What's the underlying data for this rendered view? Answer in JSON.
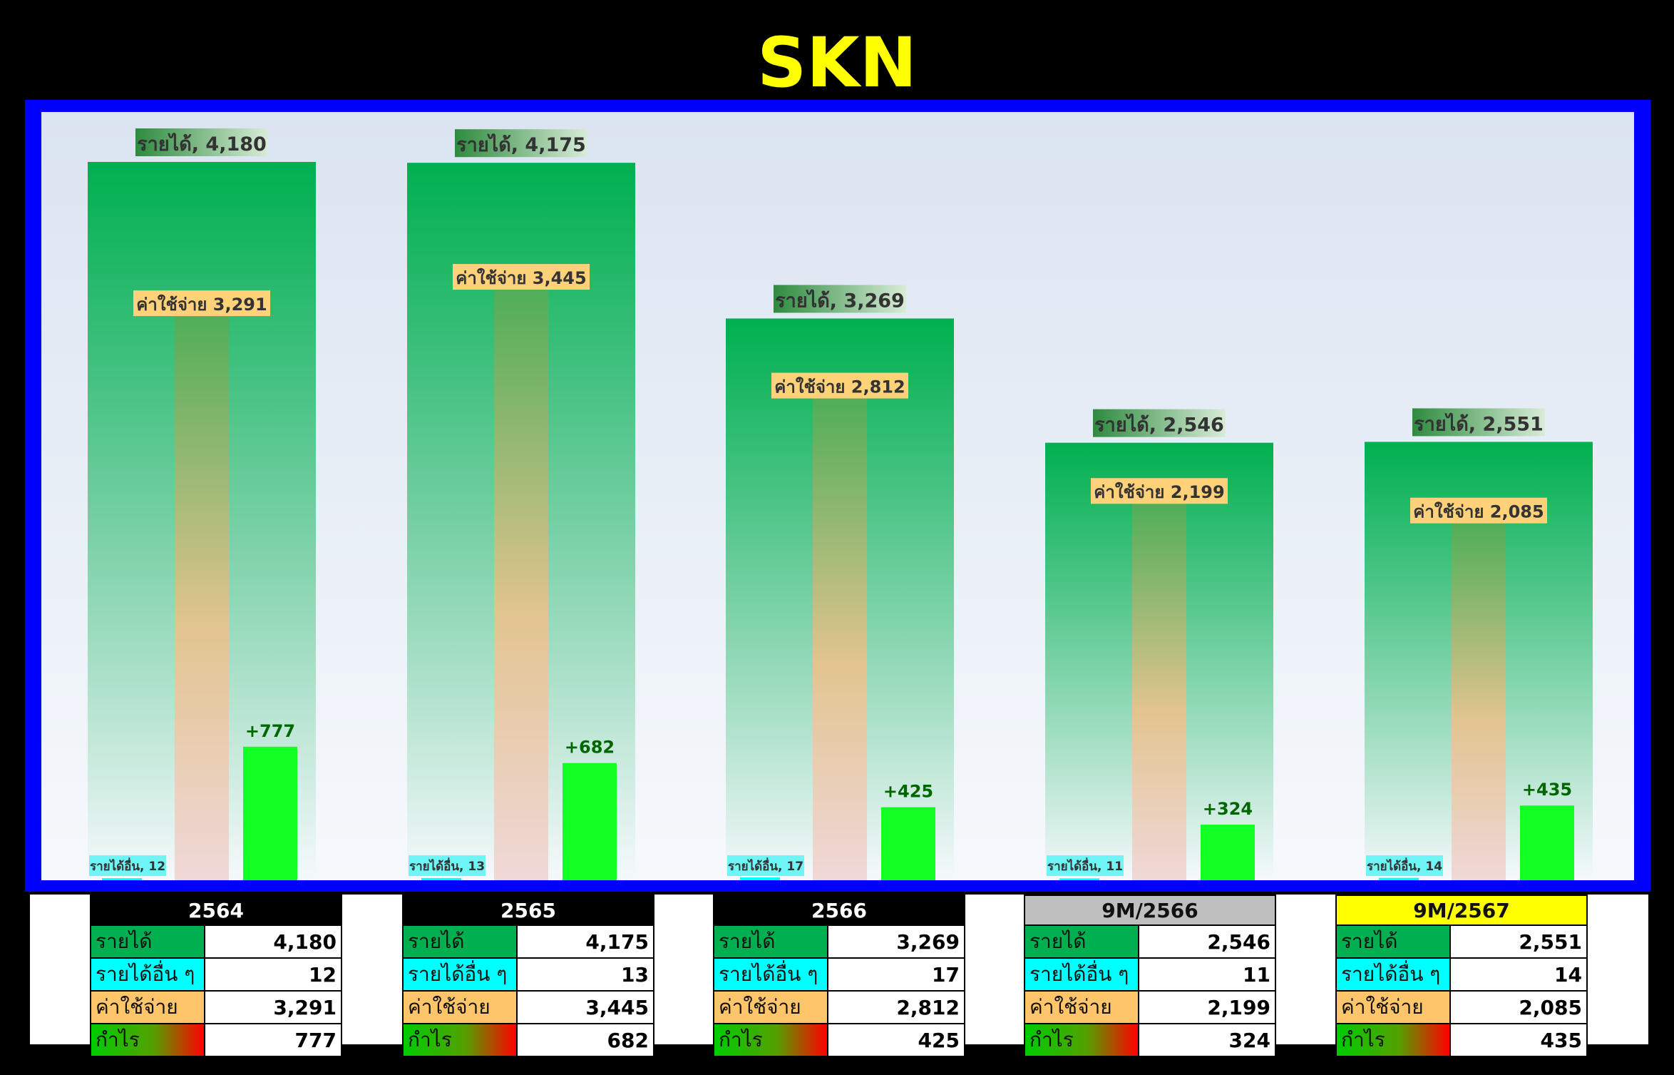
{
  "title": "SKN",
  "colors": {
    "background": "#000000",
    "title": "#ffff00",
    "frame": "#0000ff",
    "revenue": "#00b050",
    "other_income": "#00ffff",
    "expense": "#ffc56a",
    "profit_bar": "#11ff22",
    "profit_label": "#006600"
  },
  "chart_data": {
    "type": "bar",
    "categories": [
      "2564",
      "2565",
      "2566",
      "9M/2566",
      "9M/2567"
    ],
    "series": [
      {
        "name": "รายได้",
        "values": [
          4180,
          4175,
          3269,
          2546,
          2551
        ]
      },
      {
        "name": "ค่าใช้จ่าย",
        "values": [
          3291,
          3445,
          2812,
          2199,
          2085
        ]
      },
      {
        "name": "รายได้อื่น",
        "values": [
          12,
          13,
          17,
          11,
          14
        ]
      },
      {
        "name": "กำไร",
        "values": [
          777,
          682,
          425,
          324,
          435
        ]
      }
    ],
    "revenue_labels": [
      "รายได้, 4,180",
      "รายได้, 4,175",
      "รายได้, 3,269",
      "รายได้, 2,546",
      "รายได้, 2,551"
    ],
    "expense_labels": [
      "ค่าใช้จ่าย 3,291",
      "ค่าใช้จ่าย 3,445",
      "ค่าใช้จ่าย 2,812",
      "ค่าใช้จ่าย 2,199",
      "ค่าใช้จ่าย 2,085"
    ],
    "other_labels": [
      "รายได้อื่น, 12",
      "รายได้อื่น, 13",
      "รายได้อื่น, 17",
      "รายได้อื่น, 11",
      "รายได้อื่น, 14"
    ],
    "profit_labels": [
      "+777",
      "+682",
      "+425",
      "+324",
      "+435"
    ],
    "ylim": [
      0,
      4500
    ],
    "grid": false,
    "legend": "none"
  },
  "tables": [
    {
      "period": "2564",
      "header_bg": "#000000",
      "header_fg": "#ffffff",
      "rows": [
        {
          "label": "รายได้",
          "value": "4,180"
        },
        {
          "label": "รายได้อื่น ๆ",
          "value": "12"
        },
        {
          "label": "ค่าใช้จ่าย",
          "value": "3,291"
        },
        {
          "label": "กำไร",
          "value": "777"
        }
      ]
    },
    {
      "period": "2565",
      "header_bg": "#000000",
      "header_fg": "#ffffff",
      "rows": [
        {
          "label": "รายได้",
          "value": "4,175"
        },
        {
          "label": "รายได้อื่น ๆ",
          "value": "13"
        },
        {
          "label": "ค่าใช้จ่าย",
          "value": "3,445"
        },
        {
          "label": "กำไร",
          "value": "682"
        }
      ]
    },
    {
      "period": "2566",
      "header_bg": "#000000",
      "header_fg": "#ffffff",
      "rows": [
        {
          "label": "รายได้",
          "value": "3,269"
        },
        {
          "label": "รายได้อื่น ๆ",
          "value": "17"
        },
        {
          "label": "ค่าใช้จ่าย",
          "value": "2,812"
        },
        {
          "label": "กำไร",
          "value": "425"
        }
      ]
    },
    {
      "period": "9M/2566",
      "header_bg": "#bfbfbf",
      "header_fg": "#111111",
      "rows": [
        {
          "label": "รายได้",
          "value": "2,546"
        },
        {
          "label": "รายได้อื่น ๆ",
          "value": "11"
        },
        {
          "label": "ค่าใช้จ่าย",
          "value": "2,199"
        },
        {
          "label": "กำไร",
          "value": "324"
        }
      ]
    },
    {
      "period": "9M/2567",
      "header_bg": "#ffff00",
      "header_fg": "#111111",
      "rows": [
        {
          "label": "รายได้",
          "value": "2,551"
        },
        {
          "label": "รายได้อื่น ๆ",
          "value": "14"
        },
        {
          "label": "ค่าใช้จ่าย",
          "value": "2,085"
        },
        {
          "label": "กำไร",
          "value": "435"
        }
      ]
    }
  ]
}
